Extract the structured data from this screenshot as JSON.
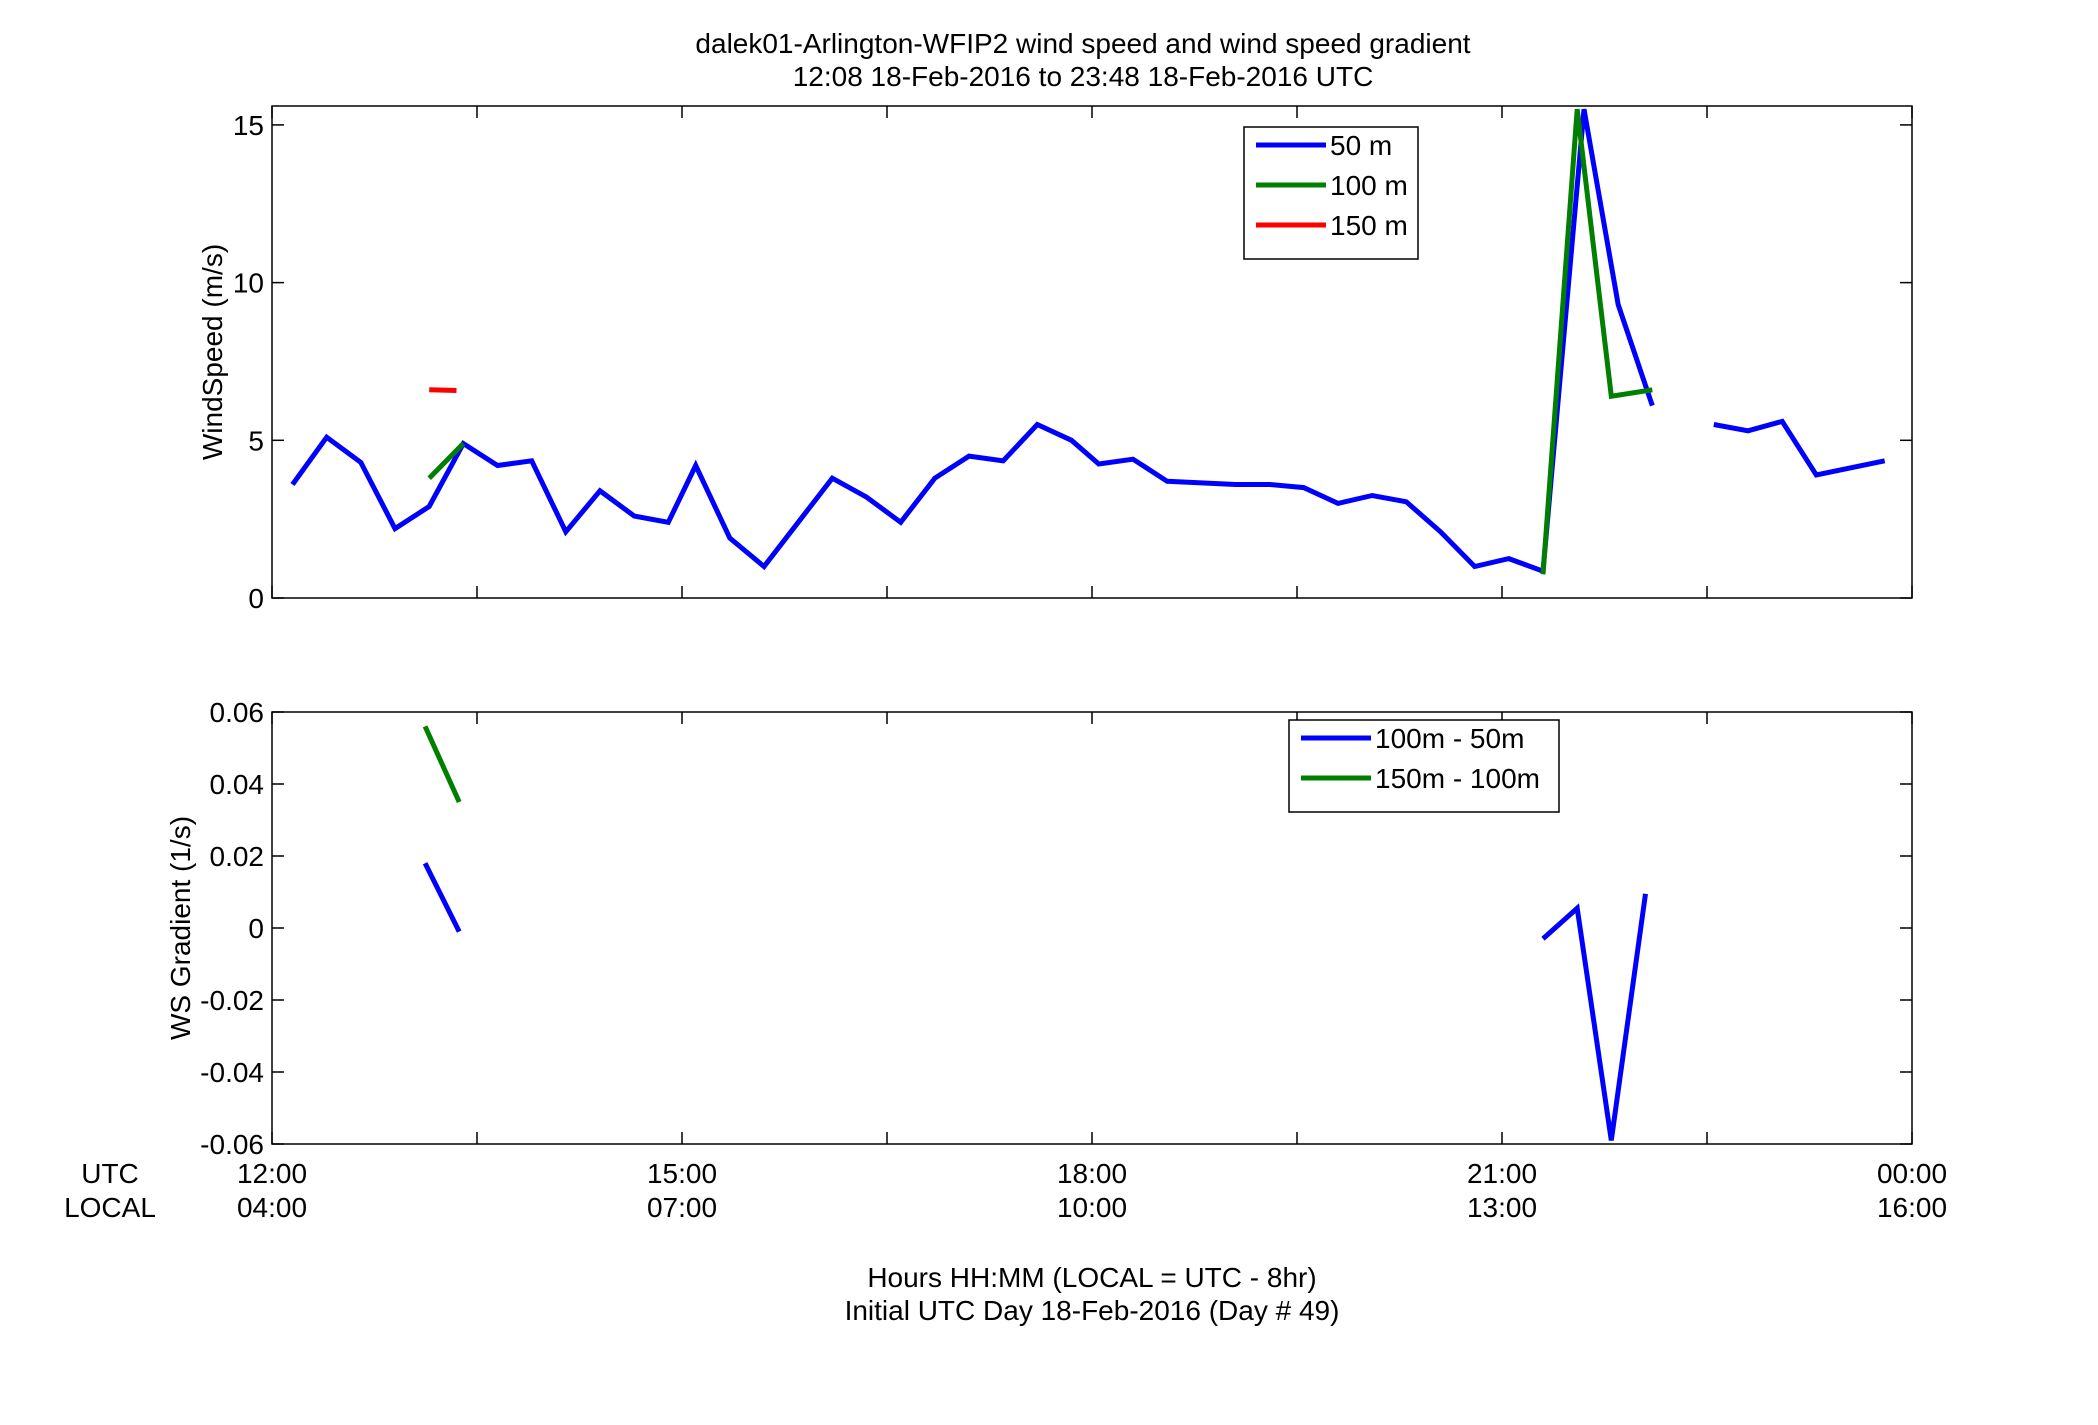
{
  "title": {
    "line1": "dalek01-Arlington-WFIP2  wind speed and wind speed gradient",
    "line2": "12:08 18-Feb-2016 to 23:48 18-Feb-2016  UTC"
  },
  "xaxis": {
    "row_label_utc": "UTC",
    "row_label_local": "LOCAL",
    "utc_ticks": [
      "12:00",
      "15:00",
      "18:00",
      "21:00",
      "00:00"
    ],
    "local_ticks": [
      "04:00",
      "07:00",
      "10:00",
      "13:00",
      "16:00"
    ],
    "label_line1": "Hours HH:MM  (LOCAL = UTC - 8hr)",
    "label_line2": "Initial UTC Day 18-Feb-2016 (Day # 49)"
  },
  "colors": {
    "blue": "#0000ff",
    "green": "#007f00",
    "red": "#ff0000"
  },
  "chart_data": [
    {
      "type": "line",
      "title": "",
      "xlabel": "",
      "ylabel": "WindSpeed (m/s)",
      "xlim": [
        12,
        24
      ],
      "ylim": [
        0,
        15.6
      ],
      "yticks": [
        0,
        5,
        10,
        15
      ],
      "ytick_labels": [
        "0",
        "5",
        "10",
        "15"
      ],
      "legend_position": "top-right",
      "series": [
        {
          "name": "50 m",
          "color": "#0000ff",
          "segments": [
            [
              [
                12.15,
                3.6
              ],
              [
                12.4,
                5.1
              ],
              [
                12.65,
                4.3
              ],
              [
                12.9,
                2.2
              ],
              [
                13.15,
                2.9
              ],
              [
                13.4,
                4.9
              ],
              [
                13.65,
                4.2
              ],
              [
                13.9,
                4.35
              ],
              [
                14.15,
                2.1
              ],
              [
                14.4,
                3.4
              ],
              [
                14.65,
                2.6
              ],
              [
                14.9,
                2.4
              ],
              [
                15.1,
                4.2
              ],
              [
                15.35,
                1.9
              ],
              [
                15.6,
                1.0
              ],
              [
                15.85,
                2.4
              ],
              [
                16.1,
                3.8
              ],
              [
                16.35,
                3.2
              ],
              [
                16.6,
                2.4
              ],
              [
                16.85,
                3.8
              ],
              [
                17.1,
                4.5
              ],
              [
                17.35,
                4.35
              ],
              [
                17.6,
                5.5
              ],
              [
                17.85,
                5.0
              ],
              [
                18.05,
                4.25
              ],
              [
                18.3,
                4.4
              ],
              [
                18.55,
                3.7
              ],
              [
                18.8,
                3.65
              ],
              [
                19.05,
                3.6
              ],
              [
                19.3,
                3.6
              ],
              [
                19.55,
                3.5
              ],
              [
                19.8,
                3.0
              ],
              [
                20.05,
                3.25
              ],
              [
                20.3,
                3.05
              ],
              [
                20.55,
                2.1
              ],
              [
                20.8,
                1.0
              ],
              [
                21.05,
                1.25
              ],
              [
                21.3,
                0.85
              ],
              [
                21.6,
                15.5
              ],
              [
                21.85,
                9.3
              ],
              [
                22.1,
                6.1
              ]
            ],
            [
              [
                22.55,
                5.5
              ],
              [
                22.8,
                5.3
              ],
              [
                23.05,
                5.6
              ],
              [
                23.3,
                3.9
              ],
              [
                23.8,
                4.35
              ]
            ]
          ]
        },
        {
          "name": "100 m",
          "color": "#007f00",
          "segments": [
            [
              [
                13.15,
                3.8
              ],
              [
                13.4,
                4.9
              ]
            ],
            [
              [
                21.3,
                0.75
              ],
              [
                21.55,
                15.5
              ],
              [
                21.8,
                6.4
              ],
              [
                22.1,
                6.6
              ]
            ]
          ]
        },
        {
          "name": "150 m",
          "color": "#ff0000",
          "segments": [
            [
              [
                13.15,
                6.6
              ],
              [
                13.35,
                6.58
              ]
            ]
          ]
        }
      ]
    },
    {
      "type": "line",
      "title": "",
      "xlabel": "",
      "ylabel": "WS Gradient (1/s)",
      "xlim": [
        12,
        24
      ],
      "ylim": [
        -0.06,
        0.06
      ],
      "yticks": [
        -0.06,
        -0.04,
        -0.02,
        0,
        0.02,
        0.04,
        0.06
      ],
      "ytick_labels": [
        "-0.06",
        "-0.04",
        "-0.02",
        "0",
        "0.02",
        "0.04",
        "0.06"
      ],
      "legend_position": "top-right",
      "series": [
        {
          "name": "100m - 50m",
          "color": "#0000ff",
          "segments": [
            [
              [
                13.12,
                0.018
              ],
              [
                13.37,
                -0.001
              ]
            ],
            [
              [
                21.3,
                -0.003
              ],
              [
                21.55,
                0.0055
              ],
              [
                21.8,
                -0.059
              ],
              [
                22.05,
                0.0095
              ]
            ]
          ]
        },
        {
          "name": "150m - 100m",
          "color": "#007f00",
          "segments": [
            [
              [
                13.12,
                0.056
              ],
              [
                13.37,
                0.035
              ]
            ]
          ]
        }
      ]
    }
  ]
}
